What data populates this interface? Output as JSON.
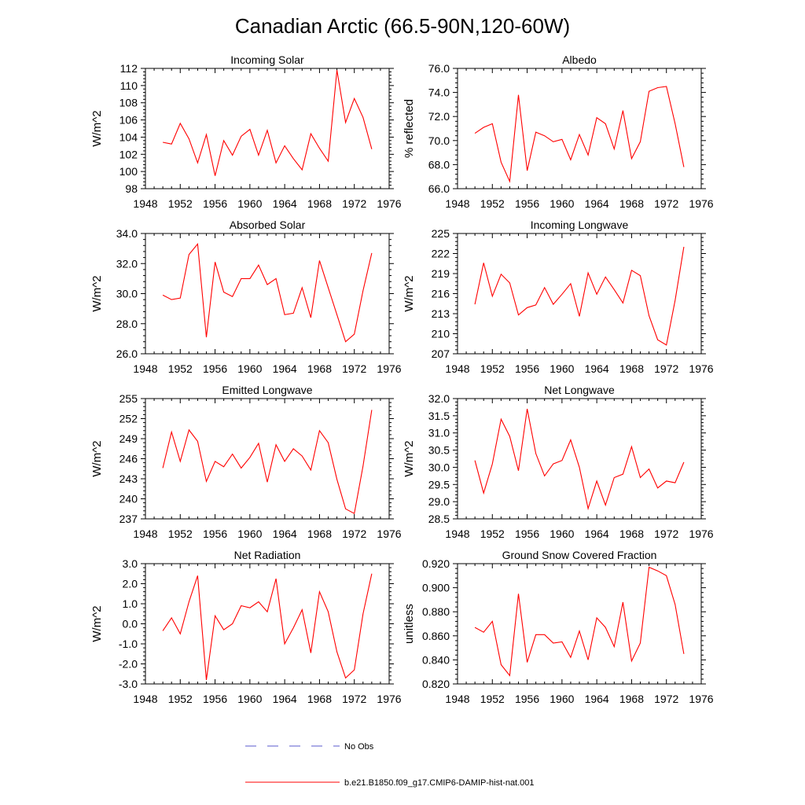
{
  "figure": {
    "title": "Canadian Arctic (66.5-90N,120-60W)"
  },
  "legend": {
    "items": [
      {
        "label": "No Obs",
        "color": "#5a5acd",
        "dash": true
      },
      {
        "label": "b.e21.B1850.f09_g17.CMIP6-DAMIP-hist-nat.001",
        "color": "#ff0000",
        "dash": false
      }
    ]
  },
  "chart_data": [
    {
      "type": "line",
      "title": "Incoming Solar",
      "ylabel": "W/m^2",
      "xlim": [
        1948,
        1976
      ],
      "xticks": [
        "1948",
        "1952",
        "1956",
        "1960",
        "1964",
        "1968",
        "1972",
        "1976"
      ],
      "ylim": [
        98,
        112
      ],
      "yticks": [
        "98",
        "100",
        "102",
        "104",
        "106",
        "108",
        "110",
        "112"
      ],
      "series": [
        {
          "color": "#ff0000",
          "x": [
            1950,
            1951,
            1952,
            1953,
            1954,
            1955,
            1956,
            1957,
            1958,
            1959,
            1960,
            1961,
            1962,
            1963,
            1964,
            1965,
            1966,
            1967,
            1968,
            1969,
            1970,
            1971,
            1972,
            1973,
            1974
          ],
          "values": [
            103.4,
            103.2,
            105.6,
            103.8,
            101.0,
            104.3,
            99.5,
            103.6,
            101.9,
            104.1,
            104.9,
            101.9,
            104.8,
            101.0,
            103.0,
            101.5,
            100.2,
            104.4,
            102.7,
            101.2,
            111.8,
            105.7,
            108.5,
            106.3,
            102.6
          ]
        }
      ]
    },
    {
      "type": "line",
      "title": "Albedo",
      "ylabel": "% reflected",
      "xlim": [
        1948,
        1976
      ],
      "xticks": [
        "1948",
        "1952",
        "1956",
        "1960",
        "1964",
        "1968",
        "1972",
        "1976"
      ],
      "ylim": [
        66,
        76
      ],
      "yticks": [
        "66.0",
        "68.0",
        "70.0",
        "72.0",
        "74.0",
        "76.0"
      ],
      "series": [
        {
          "color": "#ff0000",
          "x": [
            1950,
            1951,
            1952,
            1953,
            1954,
            1955,
            1956,
            1957,
            1958,
            1959,
            1960,
            1961,
            1962,
            1963,
            1964,
            1965,
            1966,
            1967,
            1968,
            1969,
            1970,
            1971,
            1972,
            1973,
            1974
          ],
          "values": [
            70.6,
            71.1,
            71.4,
            68.2,
            66.6,
            73.8,
            67.5,
            70.7,
            70.4,
            69.9,
            70.1,
            68.4,
            70.5,
            68.8,
            71.9,
            71.4,
            69.3,
            72.5,
            68.5,
            69.9,
            74.1,
            74.4,
            74.5,
            71.4,
            67.8
          ]
        }
      ]
    },
    {
      "type": "line",
      "title": "Absorbed Solar",
      "ylabel": "W/m^2",
      "xlim": [
        1948,
        1976
      ],
      "xticks": [
        "1948",
        "1952",
        "1956",
        "1960",
        "1964",
        "1968",
        "1972",
        "1976"
      ],
      "ylim": [
        26,
        34
      ],
      "yticks": [
        "26.0",
        "28.0",
        "30.0",
        "32.0",
        "34.0"
      ],
      "series": [
        {
          "color": "#ff0000",
          "x": [
            1950,
            1951,
            1952,
            1953,
            1954,
            1955,
            1956,
            1957,
            1958,
            1959,
            1960,
            1961,
            1962,
            1963,
            1964,
            1965,
            1966,
            1967,
            1968,
            1969,
            1970,
            1971,
            1972,
            1973,
            1974
          ],
          "values": [
            29.9,
            29.6,
            29.7,
            32.6,
            33.3,
            27.1,
            32.1,
            30.1,
            29.8,
            31.0,
            31.0,
            31.9,
            30.6,
            31.0,
            28.6,
            28.7,
            30.4,
            28.4,
            32.2,
            30.4,
            28.6,
            26.8,
            27.3,
            30.2,
            32.7
          ]
        }
      ]
    },
    {
      "type": "line",
      "title": "Incoming Longwave",
      "ylabel": "W/m^2",
      "xlim": [
        1948,
        1976
      ],
      "xticks": [
        "1948",
        "1952",
        "1956",
        "1960",
        "1964",
        "1968",
        "1972",
        "1976"
      ],
      "ylim": [
        207,
        225
      ],
      "yticks": [
        "207",
        "210",
        "213",
        "216",
        "219",
        "222",
        "225"
      ],
      "series": [
        {
          "color": "#ff0000",
          "x": [
            1950,
            1951,
            1952,
            1953,
            1954,
            1955,
            1956,
            1957,
            1958,
            1959,
            1960,
            1961,
            1962,
            1963,
            1964,
            1965,
            1966,
            1967,
            1968,
            1969,
            1970,
            1971,
            1972,
            1973,
            1974
          ],
          "values": [
            214.4,
            220.6,
            215.6,
            218.9,
            217.6,
            212.8,
            213.9,
            214.3,
            216.9,
            214.4,
            215.9,
            217.5,
            212.6,
            219.1,
            215.9,
            218.5,
            216.6,
            214.6,
            219.5,
            218.7,
            212.7,
            209.1,
            208.3,
            215.0,
            223.0
          ]
        }
      ]
    },
    {
      "type": "line",
      "title": "Emitted Longwave",
      "ylabel": "W/m^2",
      "xlim": [
        1948,
        1976
      ],
      "xticks": [
        "1948",
        "1952",
        "1956",
        "1960",
        "1964",
        "1968",
        "1972",
        "1976"
      ],
      "ylim": [
        237,
        255
      ],
      "yticks": [
        "237",
        "240",
        "243",
        "246",
        "249",
        "252",
        "255"
      ],
      "series": [
        {
          "color": "#ff0000",
          "x": [
            1950,
            1951,
            1952,
            1953,
            1954,
            1955,
            1956,
            1957,
            1958,
            1959,
            1960,
            1961,
            1962,
            1963,
            1964,
            1965,
            1966,
            1967,
            1968,
            1969,
            1970,
            1971,
            1972,
            1973,
            1974
          ],
          "values": [
            244.6,
            250.0,
            245.6,
            250.3,
            248.6,
            242.6,
            245.6,
            244.8,
            246.7,
            244.6,
            246.2,
            248.3,
            242.5,
            248.1,
            245.6,
            247.5,
            246.4,
            244.3,
            250.2,
            248.4,
            242.9,
            238.5,
            237.8,
            244.9,
            253.3
          ]
        }
      ]
    },
    {
      "type": "line",
      "title": "Net Longwave",
      "ylabel": "W/m^2",
      "xlim": [
        1948,
        1976
      ],
      "xticks": [
        "1948",
        "1952",
        "1956",
        "1960",
        "1964",
        "1968",
        "1972",
        "1976"
      ],
      "ylim": [
        28.5,
        32.0
      ],
      "yticks": [
        "28.5",
        "29.0",
        "29.5",
        "30.0",
        "30.5",
        "31.0",
        "31.5",
        "32.0"
      ],
      "series": [
        {
          "color": "#ff0000",
          "x": [
            1950,
            1951,
            1952,
            1953,
            1954,
            1955,
            1956,
            1957,
            1958,
            1959,
            1960,
            1961,
            1962,
            1963,
            1964,
            1965,
            1966,
            1967,
            1968,
            1969,
            1970,
            1971,
            1972,
            1973,
            1974
          ],
          "values": [
            30.2,
            29.25,
            30.1,
            31.4,
            30.9,
            29.9,
            31.7,
            30.4,
            29.75,
            30.1,
            30.2,
            30.8,
            30.0,
            28.8,
            29.6,
            28.9,
            29.7,
            29.8,
            30.6,
            29.7,
            29.95,
            29.4,
            29.6,
            29.55,
            30.15
          ]
        }
      ]
    },
    {
      "type": "line",
      "title": "Net Radiation",
      "ylabel": "W/m^2",
      "xlim": [
        1948,
        1976
      ],
      "xticks": [
        "1948",
        "1952",
        "1956",
        "1960",
        "1964",
        "1968",
        "1972",
        "1976"
      ],
      "ylim": [
        -3,
        3
      ],
      "yticks": [
        "-3.0",
        "-2.0",
        "-1.0",
        "0.0",
        "1.0",
        "2.0",
        "3.0"
      ],
      "series": [
        {
          "color": "#ff0000",
          "x": [
            1950,
            1951,
            1952,
            1953,
            1954,
            1955,
            1956,
            1957,
            1958,
            1959,
            1960,
            1961,
            1962,
            1963,
            1964,
            1965,
            1966,
            1967,
            1968,
            1969,
            1970,
            1971,
            1972,
            1973,
            1974
          ],
          "values": [
            -0.35,
            0.3,
            -0.5,
            1.1,
            2.4,
            -2.8,
            0.4,
            -0.3,
            0.0,
            0.9,
            0.8,
            1.1,
            0.6,
            2.25,
            -1.0,
            -0.2,
            0.7,
            -1.45,
            1.6,
            0.6,
            -1.4,
            -2.7,
            -2.3,
            0.5,
            2.5
          ]
        }
      ]
    },
    {
      "type": "line",
      "title": "Ground Snow Covered Fraction",
      "ylabel": "unitless",
      "xlim": [
        1948,
        1976
      ],
      "xticks": [
        "1948",
        "1952",
        "1956",
        "1960",
        "1964",
        "1968",
        "1972",
        "1976"
      ],
      "ylim": [
        0.82,
        0.92
      ],
      "yticks": [
        "0.820",
        "0.840",
        "0.860",
        "0.880",
        "0.900",
        "0.920"
      ],
      "series": [
        {
          "color": "#ff0000",
          "x": [
            1950,
            1951,
            1952,
            1953,
            1954,
            1955,
            1956,
            1957,
            1958,
            1959,
            1960,
            1961,
            1962,
            1963,
            1964,
            1965,
            1966,
            1967,
            1968,
            1969,
            1970,
            1971,
            1972,
            1973,
            1974
          ],
          "values": [
            0.867,
            0.863,
            0.872,
            0.836,
            0.827,
            0.895,
            0.838,
            0.861,
            0.861,
            0.854,
            0.855,
            0.842,
            0.864,
            0.84,
            0.875,
            0.867,
            0.851,
            0.888,
            0.839,
            0.854,
            0.917,
            0.914,
            0.91,
            0.886,
            0.845
          ]
        }
      ]
    }
  ]
}
